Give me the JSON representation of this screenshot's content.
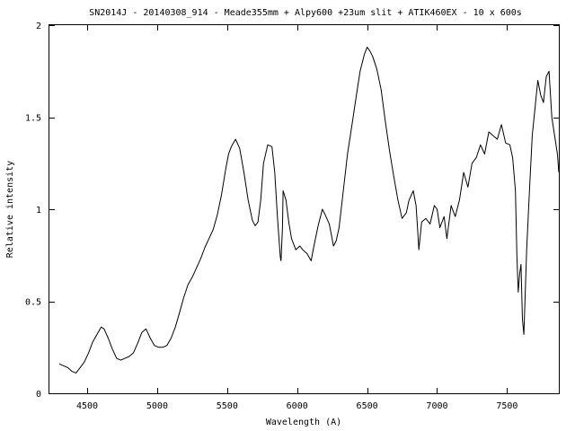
{
  "chart_data": {
    "type": "line",
    "title": "SN2014J - 20140308_914 - Meade355mm + Alpy600 +23um slit + ATIK460EX - 10 x 600s",
    "xlabel": "Wavelength (A)",
    "ylabel": "Relative intensity",
    "xlim": [
      4230,
      7870
    ],
    "ylim": [
      0,
      2
    ],
    "grid": false,
    "legend": "none",
    "xticks": [
      {
        "value": 4500,
        "label": "4500"
      },
      {
        "value": 5000,
        "label": "5000"
      },
      {
        "value": 5500,
        "label": "5500"
      },
      {
        "value": 6000,
        "label": "6000"
      },
      {
        "value": 6500,
        "label": "6500"
      },
      {
        "value": 7000,
        "label": "7000"
      },
      {
        "value": 7500,
        "label": "7500"
      }
    ],
    "yticks": [
      {
        "value": 0,
        "label": "0"
      },
      {
        "value": 0.5,
        "label": "0.5"
      },
      {
        "value": 1,
        "label": "1"
      },
      {
        "value": 1.5,
        "label": "1.5"
      },
      {
        "value": 2,
        "label": "2"
      }
    ],
    "series": [
      {
        "color": "#000000",
        "x": [
          4300,
          4330,
          4360,
          4390,
          4420,
          4450,
          4480,
          4510,
          4540,
          4570,
          4600,
          4620,
          4650,
          4680,
          4710,
          4740,
          4770,
          4800,
          4830,
          4860,
          4890,
          4920,
          4950,
          4980,
          5010,
          5040,
          5070,
          5100,
          5130,
          5160,
          5190,
          5220,
          5250,
          5280,
          5310,
          5340,
          5370,
          5400,
          5430,
          5460,
          5490,
          5510,
          5530,
          5560,
          5590,
          5620,
          5650,
          5680,
          5700,
          5720,
          5740,
          5760,
          5790,
          5820,
          5840,
          5860,
          5880,
          5885,
          5895,
          5900,
          5920,
          5940,
          5960,
          5990,
          6020,
          6040,
          6070,
          6100,
          6120,
          6150,
          6180,
          6200,
          6230,
          6260,
          6280,
          6300,
          6330,
          6360,
          6390,
          6420,
          6450,
          6480,
          6500,
          6520,
          6540,
          6570,
          6600,
          6630,
          6660,
          6690,
          6720,
          6750,
          6780,
          6800,
          6830,
          6850,
          6860,
          6870,
          6890,
          6920,
          6950,
          6980,
          7000,
          7020,
          7050,
          7070,
          7100,
          7130,
          7160,
          7190,
          7220,
          7250,
          7280,
          7310,
          7340,
          7370,
          7400,
          7430,
          7460,
          7490,
          7520,
          7540,
          7560,
          7570,
          7580,
          7590,
          7600,
          7610,
          7620,
          7640,
          7660,
          7680,
          7700,
          7720,
          7740,
          7760,
          7780,
          7800,
          7820,
          7840,
          7860,
          7870
        ],
        "y": [
          0.16,
          0.15,
          0.14,
          0.12,
          0.11,
          0.14,
          0.17,
          0.22,
          0.28,
          0.32,
          0.36,
          0.35,
          0.3,
          0.24,
          0.19,
          0.18,
          0.19,
          0.2,
          0.22,
          0.27,
          0.33,
          0.35,
          0.3,
          0.26,
          0.25,
          0.25,
          0.26,
          0.3,
          0.36,
          0.44,
          0.52,
          0.59,
          0.63,
          0.68,
          0.73,
          0.79,
          0.84,
          0.89,
          0.97,
          1.08,
          1.22,
          1.3,
          1.34,
          1.38,
          1.33,
          1.2,
          1.05,
          0.94,
          0.91,
          0.93,
          1.05,
          1.25,
          1.35,
          1.34,
          1.2,
          0.95,
          0.74,
          0.72,
          0.9,
          1.1,
          1.05,
          0.93,
          0.84,
          0.78,
          0.8,
          0.78,
          0.76,
          0.72,
          0.8,
          0.91,
          1.0,
          0.97,
          0.92,
          0.8,
          0.83,
          0.9,
          1.1,
          1.3,
          1.45,
          1.6,
          1.75,
          1.84,
          1.88,
          1.86,
          1.83,
          1.76,
          1.65,
          1.48,
          1.32,
          1.18,
          1.05,
          0.95,
          0.98,
          1.05,
          1.1,
          1.02,
          0.9,
          0.78,
          0.93,
          0.95,
          0.92,
          1.02,
          1.0,
          0.9,
          0.96,
          0.84,
          1.02,
          0.96,
          1.05,
          1.2,
          1.12,
          1.25,
          1.28,
          1.35,
          1.3,
          1.42,
          1.4,
          1.38,
          1.46,
          1.36,
          1.35,
          1.28,
          1.1,
          0.75,
          0.55,
          0.65,
          0.7,
          0.4,
          0.32,
          0.78,
          1.1,
          1.4,
          1.55,
          1.7,
          1.62,
          1.58,
          1.72,
          1.75,
          1.5,
          1.4,
          1.3,
          1.2
        ]
      }
    ]
  }
}
